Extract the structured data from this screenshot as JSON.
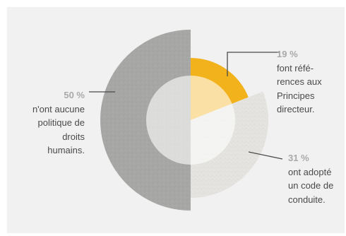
{
  "chart_data": {
    "type": "pie",
    "title": "",
    "slices": [
      {
        "value": 50,
        "pct_label": "50 %",
        "desc": "n'ont aucune\npolitique de\ndroits\nhumains.",
        "color": "#a7a7a6"
      },
      {
        "value": 19,
        "pct_label": "19 %",
        "desc": "font réfé-\nrences aux\nPrincipes\ndirecteur.",
        "color": "#f2b21c"
      },
      {
        "value": 31,
        "pct_label": "31 %",
        "desc": "ont adopté\nun code de\nconduite.",
        "color": "#e4e3e0"
      }
    ],
    "start_angle_deg": 180,
    "direction": "clockwise",
    "legend": "none"
  },
  "colors": {
    "background": "#f2f1f1",
    "center_overlay": "#ffffff",
    "leader_line": "#4a4a4a",
    "percent_text": "#a9a9a9"
  }
}
